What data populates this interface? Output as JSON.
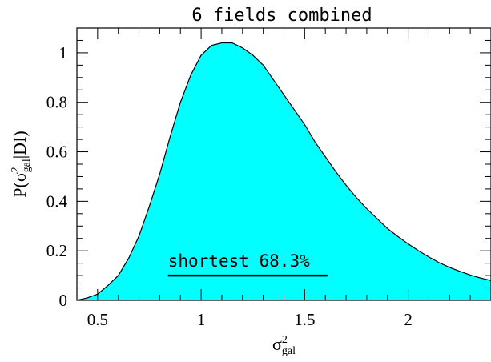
{
  "chart_data": {
    "type": "area",
    "title": "6 fields combined",
    "xlabel": "σ²gal",
    "ylabel": "P(σ²gal|DI)",
    "xlim": [
      0.4,
      2.4
    ],
    "ylim": [
      0,
      1.1
    ],
    "x_ticks": [
      0.5,
      1,
      1.5,
      2
    ],
    "x_tick_labels": [
      "0.5",
      "1",
      "1.5",
      "2"
    ],
    "y_ticks": [
      0,
      0.2,
      0.4,
      0.6,
      0.8,
      1
    ],
    "y_tick_labels": [
      "0",
      "0.2",
      "0.4",
      "0.6",
      "0.8",
      "1"
    ],
    "fill_color": "#00ffff",
    "x": [
      0.4,
      0.45,
      0.5,
      0.55,
      0.6,
      0.65,
      0.7,
      0.75,
      0.8,
      0.85,
      0.9,
      0.95,
      1.0,
      1.05,
      1.1,
      1.15,
      1.2,
      1.25,
      1.3,
      1.35,
      1.4,
      1.45,
      1.5,
      1.55,
      1.6,
      1.65,
      1.7,
      1.75,
      1.8,
      1.85,
      1.9,
      1.95,
      2.0,
      2.05,
      2.1,
      2.15,
      2.2,
      2.25,
      2.3,
      2.35,
      2.4
    ],
    "y": [
      0.0,
      0.01,
      0.025,
      0.06,
      0.1,
      0.17,
      0.26,
      0.38,
      0.51,
      0.66,
      0.8,
      0.91,
      0.99,
      1.03,
      1.04,
      1.04,
      1.02,
      0.99,
      0.95,
      0.89,
      0.83,
      0.77,
      0.71,
      0.64,
      0.58,
      0.52,
      0.465,
      0.415,
      0.37,
      0.33,
      0.29,
      0.258,
      0.228,
      0.2,
      0.175,
      0.152,
      0.133,
      0.117,
      0.102,
      0.09,
      0.08
    ],
    "annotation": {
      "text": "shortest 68.3%",
      "interval": [
        0.84,
        1.61
      ],
      "y": 0.1
    }
  }
}
